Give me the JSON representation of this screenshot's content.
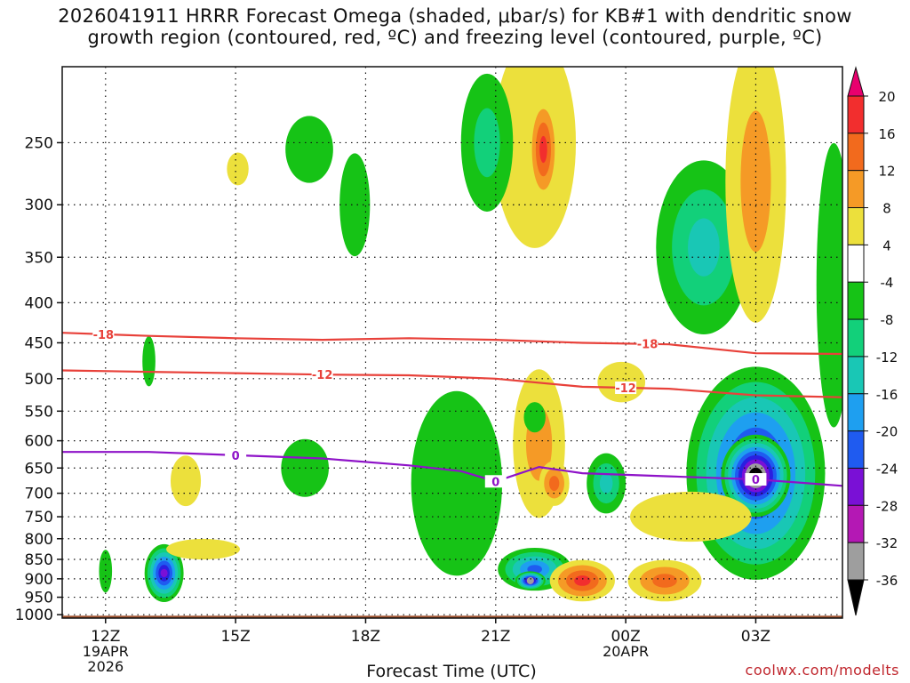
{
  "title": "2026041911 HRRR Forecast Omega (shaded, μbar/s) for KB#1 with dendritic snow\ngrowth region (contoured, red, ºC) and freezing level (contoured, purple, ºC)",
  "credit": "coolwx.com/modelts",
  "colors": {
    "ground": "#a0522d",
    "dgz_contour": "#e8413a",
    "freezing_contour": "#8e12c8",
    "text": "#111111"
  },
  "chart_data": {
    "type": "heatmap",
    "xlabel": "Forecast Time (UTC)",
    "x_ticks": [
      {
        "hour": 0,
        "label": "12Z",
        "sublabel": [
          "19APR",
          "2026"
        ]
      },
      {
        "hour": 3,
        "label": "15Z",
        "sublabel": []
      },
      {
        "hour": 6,
        "label": "18Z",
        "sublabel": []
      },
      {
        "hour": 9,
        "label": "21Z",
        "sublabel": []
      },
      {
        "hour": 12,
        "label": "00Z",
        "sublabel": [
          "20APR"
        ]
      },
      {
        "hour": 15,
        "label": "03Z",
        "sublabel": []
      }
    ],
    "x_range_hours": [
      -1,
      17
    ],
    "y_ticks": [
      250,
      300,
      350,
      400,
      450,
      500,
      550,
      600,
      650,
      700,
      750,
      800,
      850,
      900,
      950,
      1000
    ],
    "y_range_hpa": [
      200,
      1010
    ],
    "y_scale": "log-pressure",
    "grid": true,
    "colorbar": {
      "levels": [
        20,
        16,
        12,
        8,
        4,
        -4,
        -8,
        -12,
        -16,
        -20,
        -24,
        -28,
        -32,
        -36
      ],
      "colors": [
        "#e8006e",
        "#f22e2e",
        "#f26a1d",
        "#f59a26",
        "#e2b341",
        "#ece03c",
        "#ffffff",
        "#16c316",
        "#12d07a",
        "#19c7b5",
        "#1e9ff0",
        "#1f5bf0",
        "#2a1fe0",
        "#7a10d6",
        "#b418b4",
        "#9e9e9e",
        "#000000"
      ]
    },
    "omega_features": [
      {
        "x": 3.05,
        "p": 270,
        "rx": 0.25,
        "ry": 13,
        "value": 2
      },
      {
        "x": 1.35,
        "p": 885,
        "rx": 0.45,
        "ry": 75,
        "value": -30
      },
      {
        "x": 0.0,
        "p": 880,
        "rx": 0.15,
        "ry": 55,
        "value": -5
      },
      {
        "x": 1.0,
        "p": 475,
        "rx": 0.15,
        "ry": 35,
        "value": -5
      },
      {
        "x": 2.25,
        "p": 825,
        "rx": 0.85,
        "ry": 25,
        "value": 5
      },
      {
        "x": 1.85,
        "p": 675,
        "rx": 0.35,
        "ry": 50,
        "value": 6
      },
      {
        "x": 4.7,
        "p": 255,
        "rx": 0.55,
        "ry": 25,
        "value": -5
      },
      {
        "x": 5.75,
        "p": 300,
        "rx": 0.35,
        "ry": 45,
        "value": -5
      },
      {
        "x": 4.6,
        "p": 650,
        "rx": 0.55,
        "ry": 55,
        "value": -5
      },
      {
        "x": 8.1,
        "p": 680,
        "rx": 1.05,
        "ry": 180,
        "value": -7
      },
      {
        "x": 9.9,
        "p": 875,
        "rx": 0.85,
        "ry": 55,
        "value": -22
      },
      {
        "x": 9.8,
        "p": 905,
        "rx": 0.35,
        "ry": 25,
        "value": -34
      },
      {
        "x": 10.0,
        "p": 605,
        "rx": 0.6,
        "ry": 130,
        "value": 8
      },
      {
        "x": 10.35,
        "p": 680,
        "rx": 0.35,
        "ry": 45,
        "value": 12
      },
      {
        "x": 9.9,
        "p": 250,
        "rx": 0.95,
        "ry": 75,
        "value": 6
      },
      {
        "x": 10.1,
        "p": 255,
        "rx": 0.35,
        "ry": 40,
        "value": 16
      },
      {
        "x": 8.8,
        "p": 250,
        "rx": 0.6,
        "ry": 50,
        "value": -8
      },
      {
        "x": 11.0,
        "p": 905,
        "rx": 0.75,
        "ry": 55,
        "value": 18
      },
      {
        "x": 12.9,
        "p": 905,
        "rx": 0.85,
        "ry": 55,
        "value": 15
      },
      {
        "x": 11.55,
        "p": 680,
        "rx": 0.45,
        "ry": 60,
        "value": -12
      },
      {
        "x": 9.9,
        "p": 560,
        "rx": 0.25,
        "ry": 25,
        "value": -6
      },
      {
        "x": 11.9,
        "p": 505,
        "rx": 0.55,
        "ry": 30,
        "value": 5
      },
      {
        "x": 13.8,
        "p": 340,
        "rx": 1.1,
        "ry": 85,
        "value": -12
      },
      {
        "x": 15.0,
        "p": 660,
        "rx": 1.6,
        "ry": 200,
        "value": -30
      },
      {
        "x": 15.0,
        "p": 665,
        "rx": 0.8,
        "ry": 80,
        "value": -40
      },
      {
        "x": 15.0,
        "p": 280,
        "rx": 0.7,
        "ry": 110,
        "value": 9
      },
      {
        "x": 16.8,
        "p": 380,
        "rx": 0.4,
        "ry": 150,
        "value": -6
      },
      {
        "x": 13.5,
        "p": 750,
        "rx": 1.4,
        "ry": 55,
        "value": 4
      }
    ],
    "contours": [
      {
        "name": "-18",
        "color": "dgz",
        "label_at_hour": [
          -0.05,
          12.5
        ],
        "points": [
          [
            -1,
            437
          ],
          [
            1,
            441
          ],
          [
            3,
            444
          ],
          [
            5,
            446
          ],
          [
            7,
            444
          ],
          [
            9,
            446
          ],
          [
            11,
            450
          ],
          [
            13,
            452
          ],
          [
            15,
            464
          ],
          [
            17,
            465
          ]
        ]
      },
      {
        "name": "-12",
        "color": "dgz",
        "label_at_hour": [
          5,
          12.0
        ],
        "points": [
          [
            -1,
            488
          ],
          [
            1,
            490
          ],
          [
            3,
            492
          ],
          [
            5,
            494
          ],
          [
            7,
            495
          ],
          [
            9,
            500
          ],
          [
            11,
            512
          ],
          [
            13,
            515
          ],
          [
            15,
            525
          ],
          [
            17,
            528
          ]
        ]
      },
      {
        "name": "0",
        "color": "freezing",
        "label_at_hour": [
          3,
          9.0,
          15.0
        ],
        "points": [
          [
            -1,
            620
          ],
          [
            1,
            620
          ],
          [
            3,
            626
          ],
          [
            5,
            632
          ],
          [
            7,
            645
          ],
          [
            8.2,
            656
          ],
          [
            9,
            676
          ],
          [
            10,
            648
          ],
          [
            11,
            660
          ],
          [
            13,
            666
          ],
          [
            15,
            672
          ],
          [
            17,
            685
          ]
        ]
      }
    ]
  }
}
